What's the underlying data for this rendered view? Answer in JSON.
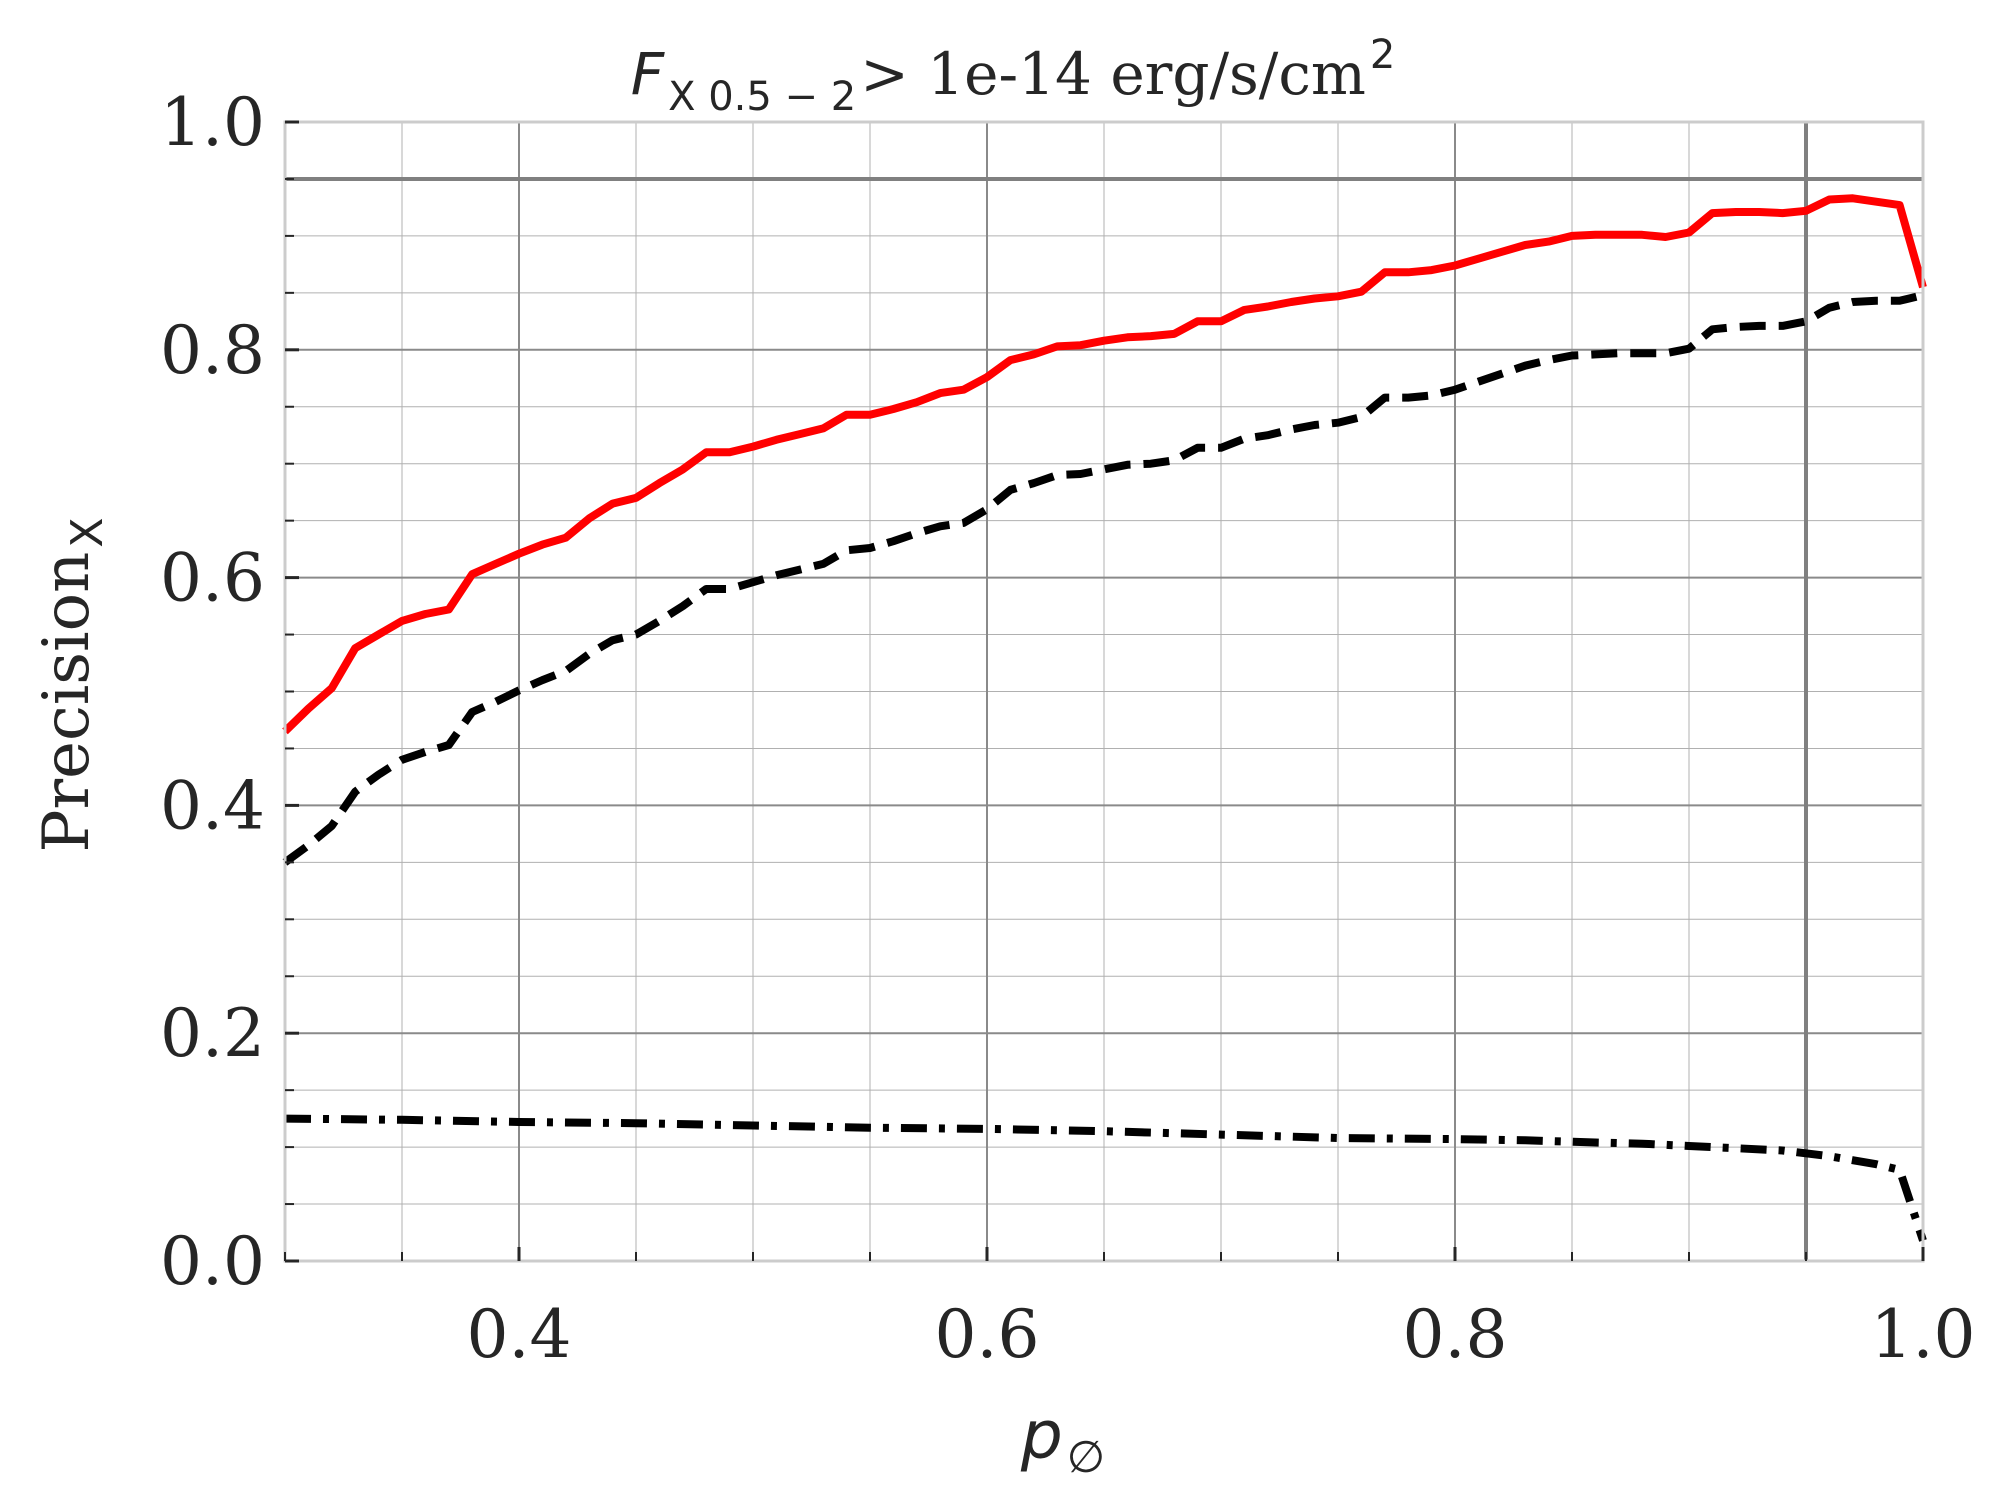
{
  "chart_data": {
    "type": "line",
    "title": {
      "prefix": "F",
      "prefix_sub": "X 0.5 − 2",
      "text": " > 1e-14 erg/s/cm",
      "sup": "2"
    },
    "xlabel": {
      "main": "p",
      "sub": "∅"
    },
    "ylabel": {
      "main": "Precision",
      "sub": "X"
    },
    "xlim": [
      0.3,
      1.0
    ],
    "ylim": [
      0.0,
      1.0
    ],
    "x_major_ticks": [
      0.4,
      0.6,
      0.8,
      1.0
    ],
    "x_tick_labels": [
      "0.4",
      "0.6",
      "0.8",
      "1.0"
    ],
    "y_major_ticks": [
      0.0,
      0.2,
      0.4,
      0.6,
      0.8,
      1.0
    ],
    "y_tick_labels": [
      "0.0",
      "0.2",
      "0.4",
      "0.6",
      "0.8",
      "1.0"
    ],
    "grid": true,
    "reference_lines": {
      "horizontal_y": 0.95,
      "vertical_x": 0.95,
      "color": "#808080"
    },
    "series": [
      {
        "style": "solid",
        "color": "#ff0000",
        "x": [
          0.3,
          0.31,
          0.32,
          0.33,
          0.34,
          0.35,
          0.36,
          0.37,
          0.38,
          0.39,
          0.4,
          0.41,
          0.42,
          0.43,
          0.44,
          0.45,
          0.46,
          0.47,
          0.48,
          0.49,
          0.5,
          0.51,
          0.52,
          0.53,
          0.54,
          0.55,
          0.56,
          0.57,
          0.58,
          0.59,
          0.6,
          0.61,
          0.62,
          0.63,
          0.64,
          0.65,
          0.66,
          0.67,
          0.68,
          0.69,
          0.7,
          0.71,
          0.72,
          0.73,
          0.74,
          0.75,
          0.76,
          0.77,
          0.78,
          0.79,
          0.8,
          0.81,
          0.82,
          0.83,
          0.84,
          0.85,
          0.86,
          0.87,
          0.88,
          0.89,
          0.9,
          0.91,
          0.92,
          0.93,
          0.94,
          0.95,
          0.96,
          0.97,
          0.98,
          0.99,
          1.0
        ],
        "y": [
          0.465,
          0.485,
          0.503,
          0.538,
          0.55,
          0.562,
          0.568,
          0.572,
          0.603,
          0.612,
          0.621,
          0.629,
          0.635,
          0.652,
          0.665,
          0.67,
          0.683,
          0.695,
          0.71,
          0.71,
          0.715,
          0.721,
          0.726,
          0.731,
          0.743,
          0.743,
          0.748,
          0.754,
          0.762,
          0.765,
          0.776,
          0.791,
          0.796,
          0.803,
          0.804,
          0.808,
          0.811,
          0.812,
          0.814,
          0.825,
          0.825,
          0.835,
          0.838,
          0.842,
          0.845,
          0.847,
          0.851,
          0.868,
          0.868,
          0.87,
          0.874,
          0.88,
          0.886,
          0.892,
          0.895,
          0.9,
          0.901,
          0.901,
          0.901,
          0.899,
          0.903,
          0.92,
          0.921,
          0.921,
          0.92,
          0.922,
          0.932,
          0.933,
          0.93,
          0.927,
          0.855
        ]
      },
      {
        "style": "dashed",
        "color": "#000000",
        "x": [
          0.3,
          0.31,
          0.32,
          0.33,
          0.34,
          0.35,
          0.36,
          0.37,
          0.38,
          0.39,
          0.4,
          0.41,
          0.42,
          0.43,
          0.44,
          0.45,
          0.46,
          0.47,
          0.48,
          0.49,
          0.5,
          0.51,
          0.52,
          0.53,
          0.54,
          0.55,
          0.56,
          0.57,
          0.58,
          0.59,
          0.6,
          0.61,
          0.62,
          0.63,
          0.64,
          0.65,
          0.66,
          0.67,
          0.68,
          0.69,
          0.7,
          0.71,
          0.72,
          0.73,
          0.74,
          0.75,
          0.76,
          0.77,
          0.78,
          0.79,
          0.8,
          0.81,
          0.82,
          0.83,
          0.84,
          0.85,
          0.86,
          0.87,
          0.88,
          0.89,
          0.9,
          0.91,
          0.92,
          0.93,
          0.94,
          0.95,
          0.96,
          0.97,
          0.98,
          0.99,
          1.0
        ],
        "y": [
          0.35,
          0.365,
          0.382,
          0.412,
          0.427,
          0.44,
          0.447,
          0.453,
          0.482,
          0.491,
          0.501,
          0.51,
          0.518,
          0.533,
          0.545,
          0.55,
          0.562,
          0.575,
          0.59,
          0.59,
          0.596,
          0.602,
          0.607,
          0.612,
          0.624,
          0.626,
          0.632,
          0.639,
          0.645,
          0.648,
          0.66,
          0.677,
          0.683,
          0.69,
          0.691,
          0.695,
          0.699,
          0.7,
          0.703,
          0.714,
          0.714,
          0.722,
          0.725,
          0.73,
          0.734,
          0.736,
          0.741,
          0.758,
          0.758,
          0.76,
          0.765,
          0.772,
          0.779,
          0.786,
          0.791,
          0.795,
          0.796,
          0.797,
          0.797,
          0.797,
          0.801,
          0.818,
          0.82,
          0.821,
          0.821,
          0.825,
          0.837,
          0.842,
          0.843,
          0.843,
          0.848
        ]
      },
      {
        "style": "dashdot",
        "color": "#000000",
        "x": [
          0.3,
          0.35,
          0.4,
          0.45,
          0.5,
          0.55,
          0.6,
          0.65,
          0.7,
          0.75,
          0.8,
          0.83,
          0.86,
          0.88,
          0.9,
          0.92,
          0.94,
          0.96,
          0.98,
          0.99,
          1.0
        ],
        "y": [
          0.125,
          0.124,
          0.122,
          0.121,
          0.119,
          0.117,
          0.116,
          0.114,
          0.111,
          0.108,
          0.107,
          0.106,
          0.104,
          0.103,
          0.101,
          0.099,
          0.097,
          0.092,
          0.085,
          0.08,
          0.018
        ]
      }
    ]
  }
}
